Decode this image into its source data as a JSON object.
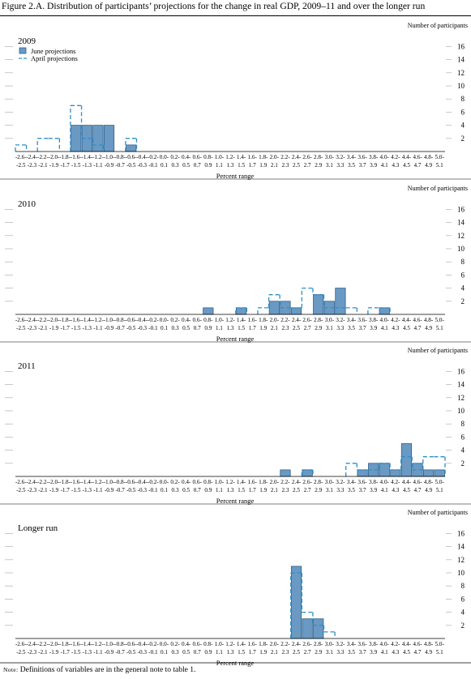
{
  "figure": {
    "title": "Figure 2.A. Distribution of participants’ projections for the change in real GDP, 2009–11 and over the longer run",
    "note_label": "Note:",
    "note_text": " Definitions of variables are in the general note to table 1."
  },
  "colors": {
    "bar_fill": "#6a9ac4",
    "bar_stroke": "#2f5f88",
    "april_line": "#2d8ec7",
    "grid": "#b0b0b0"
  },
  "legend": {
    "june_label": "June projections",
    "april_label": "April projections",
    "june_icon": "blue-filled-box",
    "april_icon": "dashed-line"
  },
  "chart_data": [
    {
      "type": "bar",
      "title": "2009",
      "ylabel": "Number of participants",
      "xlabel": "Percent range",
      "ylim": [
        0,
        16
      ],
      "yticks": [
        2,
        4,
        6,
        8,
        10,
        12,
        14,
        16
      ],
      "grid": true,
      "legend": "top-left",
      "categories": [
        "-2.6-\n-2.5",
        "-2.4-\n-2.3",
        "-2.2-\n-2.1",
        "-2.0-\n-1.9",
        "-1.8-\n-1.7",
        "-1.6-\n-1.5",
        "-1.4-\n-1.3",
        "-1.2-\n-1.1",
        "-1.0-\n-0.9",
        "-0.8-\n-0.7",
        "-0.6-\n-0.5",
        "-0.4-\n-0.3",
        "-0.2-\n-0.1",
        "0.0-\n0.1",
        "0.2-\n0.3",
        "0.4-\n0.5",
        "0.6-\n0.7",
        "0.8-\n0.9",
        "1.0-\n1.1",
        "1.2-\n1.3",
        "1.4-\n1.5",
        "1.6-\n1.7",
        "1.8-\n1.9",
        "2.0-\n2.1",
        "2.2-\n2.3",
        "2.4-\n2.5",
        "2.6-\n2.7",
        "2.8-\n2.9",
        "3.0-\n3.1",
        "3.2-\n3.3",
        "3.4-\n3.5",
        "3.6-\n3.7",
        "3.8-\n3.9",
        "4.0-\n4.1",
        "4.2-\n4.3",
        "4.4-\n4.5",
        "4.6-\n4.7",
        "4.8-\n4.9",
        "5.0-\n5.1"
      ],
      "series": [
        {
          "name": "June projections",
          "values": [
            0,
            0,
            0,
            0,
            0,
            4,
            4,
            4,
            4,
            0,
            1,
            0,
            0,
            0,
            0,
            0,
            0,
            0,
            0,
            0,
            0,
            0,
            0,
            0,
            0,
            0,
            0,
            0,
            0,
            0,
            0,
            0,
            0,
            0,
            0,
            0,
            0,
            0,
            0
          ]
        },
        {
          "name": "April projections",
          "values": [
            1,
            0,
            2,
            2,
            0,
            7,
            2,
            1,
            0,
            0,
            2,
            0,
            0,
            0,
            0,
            0,
            0,
            0,
            0,
            0,
            0,
            0,
            0,
            0,
            0,
            0,
            0,
            0,
            0,
            0,
            0,
            0,
            0,
            0,
            0,
            0,
            0,
            0,
            0
          ]
        }
      ]
    },
    {
      "type": "bar",
      "title": "2010",
      "ylabel": "Number of participants",
      "xlabel": "Percent range",
      "ylim": [
        0,
        16
      ],
      "yticks": [
        2,
        4,
        6,
        8,
        10,
        12,
        14,
        16
      ],
      "grid": true,
      "categories": [
        "-2.6-\n-2.5",
        "-2.4-\n-2.3",
        "-2.2-\n-2.1",
        "-2.0-\n-1.9",
        "-1.8-\n-1.7",
        "-1.6-\n-1.5",
        "-1.4-\n-1.3",
        "-1.2-\n-1.1",
        "-1.0-\n-0.9",
        "-0.8-\n-0.7",
        "-0.6-\n-0.5",
        "-0.4-\n-0.3",
        "-0.2-\n-0.1",
        "0.0-\n0.1",
        "0.2-\n0.3",
        "0.4-\n0.5",
        "0.6-\n0.7",
        "0.8-\n0.9",
        "1.0-\n1.1",
        "1.2-\n1.3",
        "1.4-\n1.5",
        "1.6-\n1.7",
        "1.8-\n1.9",
        "2.0-\n2.1",
        "2.2-\n2.3",
        "2.4-\n2.5",
        "2.6-\n2.7",
        "2.8-\n2.9",
        "3.0-\n3.1",
        "3.2-\n3.3",
        "3.4-\n3.5",
        "3.6-\n3.7",
        "3.8-\n3.9",
        "4.0-\n4.1",
        "4.2-\n4.3",
        "4.4-\n4.5",
        "4.6-\n4.7",
        "4.8-\n4.9",
        "5.0-\n5.1"
      ],
      "series": [
        {
          "name": "June projections",
          "values": [
            0,
            0,
            0,
            0,
            0,
            0,
            0,
            0,
            0,
            0,
            0,
            0,
            0,
            0,
            0,
            0,
            0,
            1,
            0,
            0,
            1,
            0,
            0,
            2,
            2,
            1,
            0,
            3,
            2,
            4,
            0,
            0,
            0,
            1,
            0,
            0,
            0,
            0,
            0
          ]
        },
        {
          "name": "April projections",
          "values": [
            0,
            0,
            0,
            0,
            0,
            0,
            0,
            0,
            0,
            0,
            0,
            0,
            0,
            0,
            0,
            0,
            0,
            0,
            0,
            0,
            1,
            0,
            1,
            3,
            1,
            1,
            4,
            3,
            1,
            1,
            1,
            0,
            1,
            1,
            0,
            0,
            0,
            0,
            0
          ]
        }
      ]
    },
    {
      "type": "bar",
      "title": "2011",
      "ylabel": "Number of participants",
      "xlabel": "Percent range",
      "ylim": [
        0,
        16
      ],
      "yticks": [
        2,
        4,
        6,
        8,
        10,
        12,
        14,
        16
      ],
      "grid": true,
      "categories": [
        "-2.6-\n-2.5",
        "-2.4-\n-2.3",
        "-2.2-\n-2.1",
        "-2.0-\n-1.9",
        "-1.8-\n-1.7",
        "-1.6-\n-1.5",
        "-1.4-\n-1.3",
        "-1.2-\n-1.1",
        "-1.0-\n-0.9",
        "-0.8-\n-0.7",
        "-0.6-\n-0.5",
        "-0.4-\n-0.3",
        "-0.2-\n-0.1",
        "0.0-\n0.1",
        "0.2-\n0.3",
        "0.4-\n0.5",
        "0.6-\n0.7",
        "0.8-\n0.9",
        "1.0-\n1.1",
        "1.2-\n1.3",
        "1.4-\n1.5",
        "1.6-\n1.7",
        "1.8-\n1.9",
        "2.0-\n2.1",
        "2.2-\n2.3",
        "2.4-\n2.5",
        "2.6-\n2.7",
        "2.8-\n2.9",
        "3.0-\n3.1",
        "3.2-\n3.3",
        "3.4-\n3.5",
        "3.6-\n3.7",
        "3.8-\n3.9",
        "4.0-\n4.1",
        "4.2-\n4.3",
        "4.4-\n4.5",
        "4.6-\n4.7",
        "4.8-\n4.9",
        "5.0-\n5.1"
      ],
      "series": [
        {
          "name": "June projections",
          "values": [
            0,
            0,
            0,
            0,
            0,
            0,
            0,
            0,
            0,
            0,
            0,
            0,
            0,
            0,
            0,
            0,
            0,
            0,
            0,
            0,
            0,
            0,
            0,
            0,
            1,
            0,
            1,
            0,
            0,
            0,
            0,
            1,
            2,
            2,
            1,
            5,
            2,
            1,
            1
          ]
        },
        {
          "name": "April projections",
          "values": [
            0,
            0,
            0,
            0,
            0,
            0,
            0,
            0,
            0,
            0,
            0,
            0,
            0,
            0,
            0,
            0,
            0,
            0,
            0,
            0,
            0,
            0,
            0,
            0,
            0,
            0,
            1,
            0,
            0,
            0,
            2,
            1,
            1,
            2,
            1,
            3,
            1,
            3,
            3
          ]
        }
      ]
    },
    {
      "type": "bar",
      "title": "Longer run",
      "ylabel": "Number of participants",
      "xlabel": "Percent range",
      "ylim": [
        0,
        16
      ],
      "yticks": [
        2,
        4,
        6,
        8,
        10,
        12,
        14,
        16
      ],
      "grid": true,
      "categories": [
        "-2.6-\n-2.5",
        "-2.4-\n-2.3",
        "-2.2-\n-2.1",
        "-2.0-\n-1.9",
        "-1.8-\n-1.7",
        "-1.6-\n-1.5",
        "-1.4-\n-1.3",
        "-1.2-\n-1.1",
        "-1.0-\n-0.9",
        "-0.8-\n-0.7",
        "-0.6-\n-0.5",
        "-0.4-\n-0.3",
        "-0.2-\n-0.1",
        "0.0-\n0.1",
        "0.2-\n0.3",
        "0.4-\n0.5",
        "0.6-\n0.7",
        "0.8-\n0.9",
        "1.0-\n1.1",
        "1.2-\n1.3",
        "1.4-\n1.5",
        "1.6-\n1.7",
        "1.8-\n1.9",
        "2.0-\n2.1",
        "2.2-\n2.3",
        "2.4-\n2.5",
        "2.6-\n2.7",
        "2.8-\n2.9",
        "3.0-\n3.1",
        "3.2-\n3.3",
        "3.4-\n3.5",
        "3.6-\n3.7",
        "3.8-\n3.9",
        "4.0-\n4.1",
        "4.2-\n4.3",
        "4.4-\n4.5",
        "4.6-\n4.7",
        "4.8-\n4.9",
        "5.0-\n5.1"
      ],
      "series": [
        {
          "name": "June projections",
          "values": [
            0,
            0,
            0,
            0,
            0,
            0,
            0,
            0,
            0,
            0,
            0,
            0,
            0,
            0,
            0,
            0,
            0,
            0,
            0,
            0,
            0,
            0,
            0,
            0,
            0,
            11,
            3,
            3,
            0,
            0,
            0,
            0,
            0,
            0,
            0,
            0,
            0,
            0,
            0
          ]
        },
        {
          "name": "April projections",
          "values": [
            0,
            0,
            0,
            0,
            0,
            0,
            0,
            0,
            0,
            0,
            0,
            0,
            0,
            0,
            0,
            0,
            0,
            0,
            0,
            0,
            0,
            0,
            0,
            0,
            0,
            10,
            4,
            2,
            1,
            0,
            0,
            0,
            0,
            0,
            0,
            0,
            0,
            0,
            0
          ]
        }
      ]
    }
  ]
}
